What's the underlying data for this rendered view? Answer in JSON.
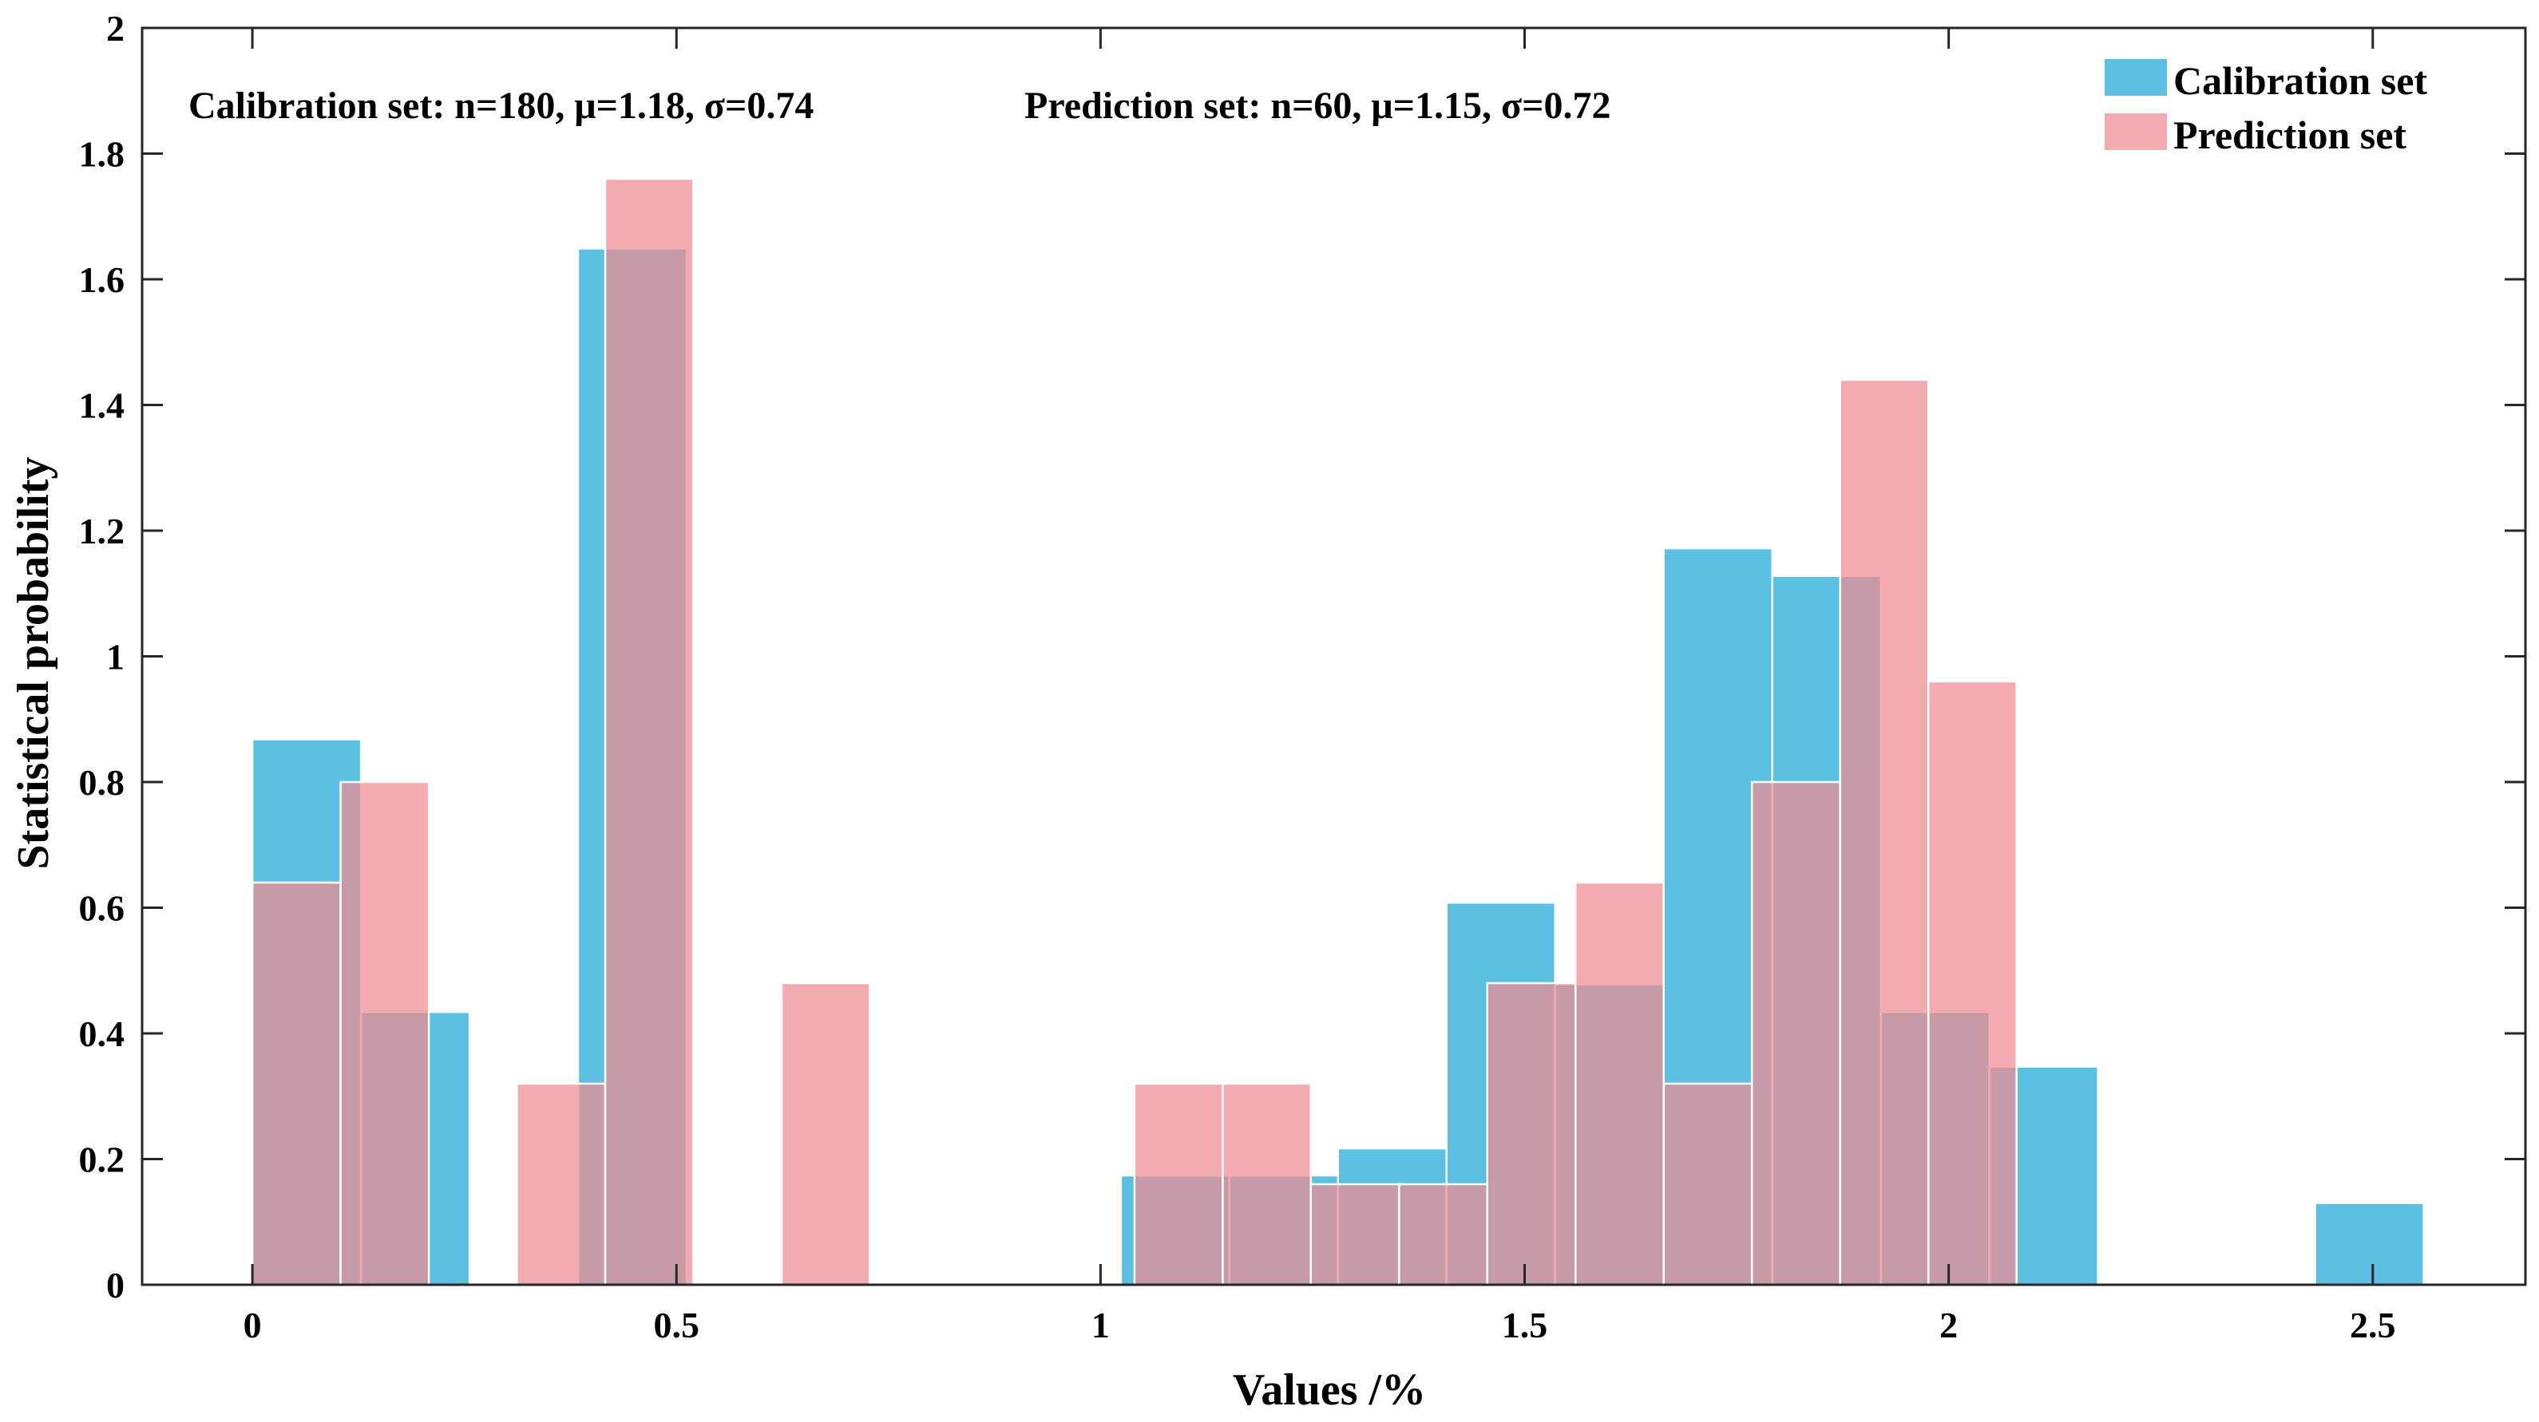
{
  "chart_data": {
    "type": "histogram",
    "title": "",
    "xlabel": "Values /%",
    "ylabel": "Statistical probability",
    "xlim": [
      -0.13,
      2.68
    ],
    "ylim": [
      0,
      2
    ],
    "xticks": [
      0,
      0.5,
      1,
      1.5,
      2,
      2.5
    ],
    "xtick_labels": [
      "0",
      "0.5",
      "1",
      "1.5",
      "2",
      "2.5"
    ],
    "yticks": [
      0,
      0.2,
      0.4,
      0.6,
      0.8,
      1,
      1.2,
      1.4,
      1.6,
      1.8,
      2
    ],
    "ytick_labels": [
      "0",
      "0.2",
      "0.4",
      "0.6",
      "0.8",
      "1",
      "1.2",
      "1.4",
      "1.6",
      "1.8",
      "2"
    ],
    "grid": false,
    "legend_position": "top-right",
    "annotations": [
      "Calibration set: n=180, μ=1.18, σ=0.74",
      "Prediction set: n=60, μ=1.15, σ=0.72"
    ],
    "series": [
      {
        "name": "Calibration set",
        "color": "#5bc0e2",
        "bins": [
          {
            "x0": 0.0,
            "x1": 0.128,
            "value": 0.868
          },
          {
            "x0": 0.128,
            "x1": 0.256,
            "value": 0.434
          },
          {
            "x0": 0.384,
            "x1": 0.512,
            "value": 1.649
          },
          {
            "x0": 1.024,
            "x1": 1.152,
            "value": 0.174
          },
          {
            "x0": 1.152,
            "x1": 1.28,
            "value": 0.174
          },
          {
            "x0": 1.28,
            "x1": 1.408,
            "value": 0.217
          },
          {
            "x0": 1.408,
            "x1": 1.536,
            "value": 0.608
          },
          {
            "x0": 1.536,
            "x1": 1.664,
            "value": 0.478
          },
          {
            "x0": 1.664,
            "x1": 1.792,
            "value": 1.172
          },
          {
            "x0": 1.792,
            "x1": 1.92,
            "value": 1.128
          },
          {
            "x0": 1.92,
            "x1": 2.048,
            "value": 0.434
          },
          {
            "x0": 2.048,
            "x1": 2.176,
            "value": 0.347
          },
          {
            "x0": 2.432,
            "x1": 2.56,
            "value": 0.13
          }
        ]
      },
      {
        "name": "Prediction set",
        "color": "#f08a90",
        "bins": [
          {
            "x0": 0.0,
            "x1": 0.104,
            "value": 0.64
          },
          {
            "x0": 0.104,
            "x1": 0.208,
            "value": 0.8
          },
          {
            "x0": 0.312,
            "x1": 0.416,
            "value": 0.32
          },
          {
            "x0": 0.416,
            "x1": 0.52,
            "value": 1.76
          },
          {
            "x0": 0.624,
            "x1": 0.728,
            "value": 0.48
          },
          {
            "x0": 1.04,
            "x1": 1.144,
            "value": 0.32
          },
          {
            "x0": 1.144,
            "x1": 1.248,
            "value": 0.32
          },
          {
            "x0": 1.248,
            "x1": 1.352,
            "value": 0.16
          },
          {
            "x0": 1.352,
            "x1": 1.456,
            "value": 0.16
          },
          {
            "x0": 1.456,
            "x1": 1.56,
            "value": 0.48
          },
          {
            "x0": 1.56,
            "x1": 1.664,
            "value": 0.64
          },
          {
            "x0": 1.664,
            "x1": 1.768,
            "value": 0.32
          },
          {
            "x0": 1.768,
            "x1": 1.872,
            "value": 0.8
          },
          {
            "x0": 1.872,
            "x1": 1.976,
            "value": 1.44
          },
          {
            "x0": 1.976,
            "x1": 2.08,
            "value": 0.96
          }
        ]
      }
    ]
  }
}
